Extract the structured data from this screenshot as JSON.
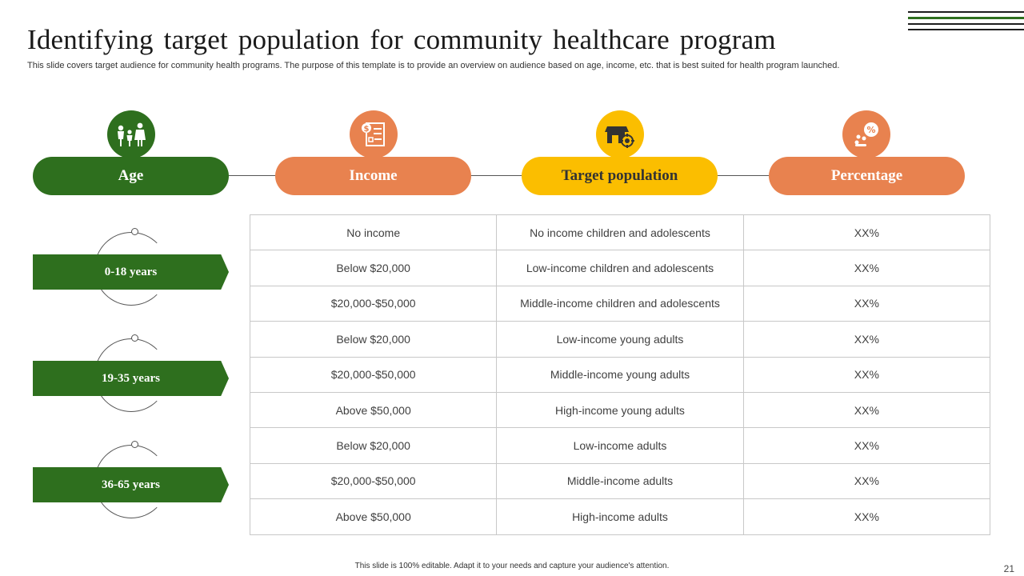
{
  "slide": {
    "title": "Identifying target population for community healthcare program",
    "subtitle": "This slide covers target audience for community health programs. The purpose of this template is to provide an overview on audience based on age, income, etc. that is best suited for health program launched.",
    "footer": "This slide is 100% editable. Adapt it to your needs and capture your audience's attention.",
    "page_number": "21"
  },
  "headers": [
    {
      "label": "Age",
      "icon": "family-icon",
      "color": "#2e6f1e"
    },
    {
      "label": "Income",
      "icon": "income-document-icon",
      "color": "#e8824f"
    },
    {
      "label": "Target population",
      "icon": "store-target-icon",
      "color": "#fbbe00"
    },
    {
      "label": "Percentage",
      "icon": "percentage-people-icon",
      "color": "#e8824f"
    }
  ],
  "age_groups": [
    "0-18 years",
    "19-35 years",
    "36-65 years"
  ],
  "rows": [
    {
      "income": "No income",
      "population": "No income children and adolescents",
      "percentage": "XX%"
    },
    {
      "income": "Below $20,000",
      "population": "Low-income children and adolescents",
      "percentage": "XX%"
    },
    {
      "income": "$20,000-$50,000",
      "population": "Middle-income children and adolescents",
      "percentage": "XX%"
    },
    {
      "income": "Below $20,000",
      "population": "Low-income young adults",
      "percentage": "XX%"
    },
    {
      "income": "$20,000-$50,000",
      "population": "Middle-income young adults",
      "percentage": "XX%"
    },
    {
      "income": "Above $50,000",
      "population": "High-income young adults",
      "percentage": "XX%"
    },
    {
      "income": "Below $20,000",
      "population": "Low-income adults",
      "percentage": "XX%"
    },
    {
      "income": "$20,000-$50,000",
      "population": "Middle-income adults",
      "percentage": "XX%"
    },
    {
      "income": "Above $50,000",
      "population": "High-income adults",
      "percentage": "XX%"
    }
  ]
}
